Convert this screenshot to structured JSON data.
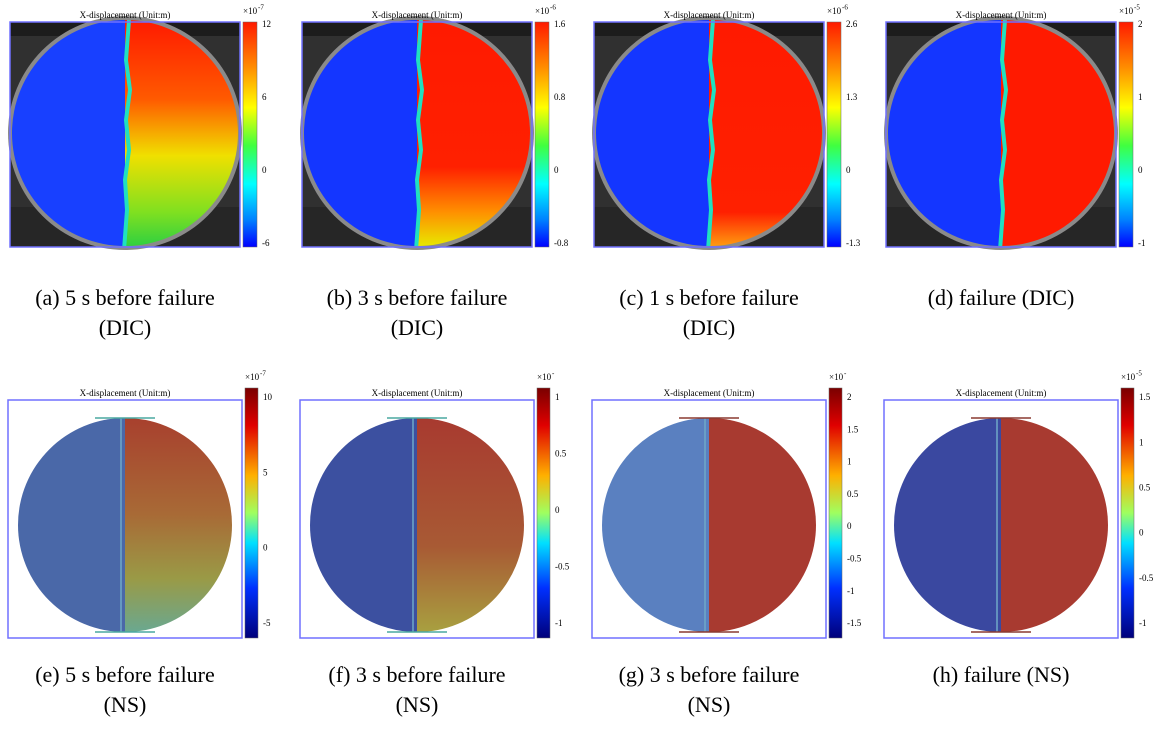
{
  "panels": [
    {
      "title": "X-displacement (Unit:m)",
      "colorbar": {
        "base": "×10",
        "power": "-7",
        "ticks": [
          "12",
          "6",
          "0",
          "-6"
        ]
      },
      "caption": [
        "(a) 5 s before failure",
        "(DIC)"
      ]
    },
    {
      "title": "X-displacement (Unit:m)",
      "colorbar": {
        "base": "×10",
        "power": "-6",
        "ticks": [
          "1.6",
          "0.8",
          "0",
          "-0.8"
        ]
      },
      "caption": [
        "(b) 3 s before failure",
        "(DIC)"
      ]
    },
    {
      "title": "X-displacement (Unit:m)",
      "colorbar": {
        "base": "×10",
        "power": "-6",
        "ticks": [
          "2.6",
          "1.3",
          "0",
          "-1.3"
        ]
      },
      "caption": [
        "(c) 1 s before failure",
        "(DIC)"
      ]
    },
    {
      "title": "X-displacement (Unit:m)",
      "colorbar": {
        "base": "×10",
        "power": "-5",
        "ticks": [
          "2",
          "1",
          "0",
          "-1"
        ]
      },
      "caption": [
        "(d) failure (DIC)"
      ]
    },
    {
      "title": "X-displacement (Unit:m)",
      "colorbar": {
        "base": "×10",
        "power": "-7",
        "ticks": [
          "10",
          "5",
          "0",
          "-5"
        ]
      },
      "caption": [
        "(e) 5 s before failure",
        "(NS)"
      ]
    },
    {
      "title": "X-displacement (Unit:m)",
      "colorbar": {
        "base": "×10",
        "power": "-",
        "ticks": [
          "1",
          "0.5",
          "0",
          "-0.5",
          "-1"
        ]
      },
      "caption": [
        "(f) 3 s before failure",
        "(NS)"
      ]
    },
    {
      "title": "X-displacement (Unit:m)",
      "colorbar": {
        "base": "×10",
        "power": "-",
        "ticks": [
          "2",
          "1.5",
          "1",
          "0.5",
          "0",
          "-0.5",
          "-1",
          "-1.5"
        ]
      },
      "caption": [
        "(g) 3 s before failure",
        "(NS)"
      ]
    },
    {
      "title": "X-displacement (Unit:m)",
      "colorbar": {
        "base": "×10",
        "power": "-5",
        "ticks": [
          "1.5",
          "1",
          "0.5",
          "0",
          "-0.5",
          "-1"
        ]
      },
      "caption": [
        "(h) failure (NS)"
      ]
    }
  ]
}
